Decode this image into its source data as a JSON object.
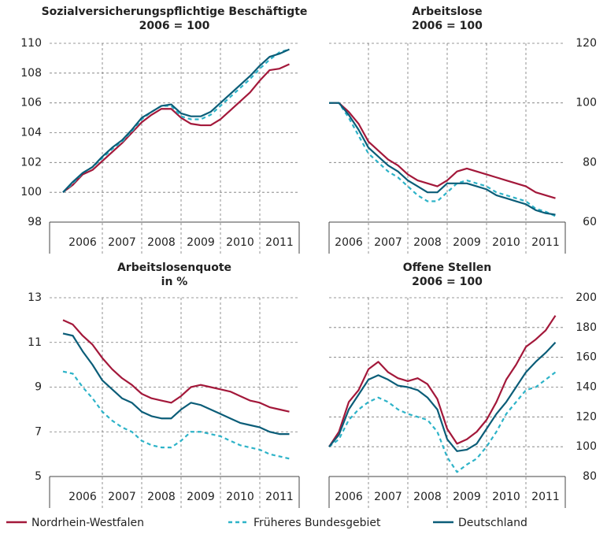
{
  "chart_data": [
    {
      "type": "line",
      "title": "Sozialversicherungspflichtige Beschäftigte",
      "subtitle": "2006 = 100",
      "x": [
        2006,
        2006.25,
        2006.5,
        2006.75,
        2007,
        2007.25,
        2007.5,
        2007.75,
        2008,
        2008.25,
        2008.5,
        2008.75,
        2009,
        2009.25,
        2009.5,
        2009.75,
        2010,
        2010.25,
        2010.5,
        2010.75,
        2011,
        2011.25,
        2011.5,
        2011.75
      ],
      "xlim": [
        2005.66,
        2012
      ],
      "xticks": [
        {
          "value": 2006.5,
          "label": "2006"
        },
        {
          "value": 2007.5,
          "label": "2007"
        },
        {
          "value": 2008.5,
          "label": "2008"
        },
        {
          "value": 2009.5,
          "label": "2009"
        },
        {
          "value": 2010.5,
          "label": "2010"
        },
        {
          "value": 2011.5,
          "label": "2011"
        }
      ],
      "xgrid": [
        2007,
        2008,
        2009,
        2010,
        2011
      ],
      "ylim": [
        98,
        110
      ],
      "yticks": [
        98,
        100,
        102,
        104,
        106,
        108,
        110
      ],
      "yaxis": "left",
      "grid": true,
      "series": [
        {
          "name": "Nordrhein-Westfalen",
          "color": "#a3183a",
          "dash": false,
          "values": [
            100,
            100.5,
            101.2,
            101.5,
            102.1,
            102.7,
            103.3,
            104,
            104.7,
            105.2,
            105.6,
            105.6,
            105,
            104.6,
            104.5,
            104.5,
            104.9,
            105.5,
            106.1,
            106.7,
            107.5,
            108.2,
            108.3,
            108.6
          ]
        },
        {
          "name": "Früheres Bundesgebiet",
          "color": "#2db3c8",
          "dash": true,
          "values": [
            100,
            100.6,
            101.3,
            101.7,
            102.3,
            102.9,
            103.4,
            104.1,
            104.9,
            105.4,
            105.8,
            105.8,
            105.1,
            104.9,
            104.9,
            105.2,
            105.8,
            106.4,
            107,
            107.6,
            108.3,
            108.9,
            109.4,
            109.6
          ]
        },
        {
          "name": "Deutschland",
          "color": "#0b5d78",
          "dash": false,
          "values": [
            100,
            100.7,
            101.3,
            101.7,
            102.4,
            103,
            103.5,
            104.2,
            105,
            105.4,
            105.8,
            105.9,
            105.3,
            105.1,
            105.1,
            105.4,
            106,
            106.6,
            107.2,
            107.8,
            108.5,
            109.1,
            109.3,
            109.6
          ]
        }
      ]
    },
    {
      "type": "line",
      "title": "Arbeitslose",
      "subtitle": "2006 = 100",
      "x": [
        2006,
        2006.25,
        2006.5,
        2006.75,
        2007,
        2007.25,
        2007.5,
        2007.75,
        2008,
        2008.25,
        2008.5,
        2008.75,
        2009,
        2009.25,
        2009.5,
        2009.75,
        2010,
        2010.25,
        2010.5,
        2010.75,
        2011,
        2011.25,
        2011.5,
        2011.75
      ],
      "xlim": [
        2006,
        2012
      ],
      "xticks": [
        {
          "value": 2006.5,
          "label": "2006"
        },
        {
          "value": 2007.5,
          "label": "2007"
        },
        {
          "value": 2008.5,
          "label": "2008"
        },
        {
          "value": 2009.5,
          "label": "2009"
        },
        {
          "value": 2010.5,
          "label": "2010"
        },
        {
          "value": 2011.5,
          "label": "2011"
        }
      ],
      "xgrid": [
        2007,
        2008,
        2009,
        2010,
        2011
      ],
      "ylim": [
        60,
        120
      ],
      "yticks": [
        60,
        80,
        100,
        120
      ],
      "yaxis": "right",
      "grid": true,
      "series": [
        {
          "name": "Nordrhein-Westfalen",
          "color": "#a3183a",
          "dash": false,
          "values": [
            100,
            100,
            97,
            93,
            87,
            84,
            81,
            79,
            76,
            74,
            73,
            72,
            74,
            77,
            78,
            77,
            76,
            75,
            74,
            73,
            72,
            70,
            69,
            68
          ]
        },
        {
          "name": "Früheres Bundesgebiet",
          "color": "#2db3c8",
          "dash": true,
          "values": [
            100,
            100,
            95,
            89,
            83,
            80,
            77,
            75,
            72,
            69,
            67,
            67,
            70,
            73,
            74,
            73,
            72,
            70,
            69,
            68,
            67,
            64.5,
            63.5,
            62
          ]
        },
        {
          "name": "Deutschland",
          "color": "#0b5d78",
          "dash": false,
          "values": [
            100,
            100,
            96,
            91,
            85,
            82,
            79,
            77,
            74,
            72,
            70,
            70,
            73,
            73,
            73,
            72,
            71,
            69,
            68,
            67,
            66,
            64,
            63,
            62.5
          ]
        }
      ]
    },
    {
      "type": "line",
      "title": "Arbeitslosenquote",
      "subtitle": "in %",
      "x": [
        2006,
        2006.25,
        2006.5,
        2006.75,
        2007,
        2007.25,
        2007.5,
        2007.75,
        2008,
        2008.25,
        2008.5,
        2008.75,
        2009,
        2009.25,
        2009.5,
        2009.75,
        2010,
        2010.25,
        2010.5,
        2010.75,
        2011,
        2011.25,
        2011.5,
        2011.75
      ],
      "xlim": [
        2005.66,
        2012
      ],
      "xticks": [
        {
          "value": 2006.5,
          "label": "2006"
        },
        {
          "value": 2007.5,
          "label": "2007"
        },
        {
          "value": 2008.5,
          "label": "2008"
        },
        {
          "value": 2009.5,
          "label": "2009"
        },
        {
          "value": 2010.5,
          "label": "2010"
        },
        {
          "value": 2011.5,
          "label": "2011"
        }
      ],
      "xgrid": [
        2007,
        2008,
        2009,
        2010,
        2011
      ],
      "ylim": [
        5,
        13
      ],
      "yticks": [
        5,
        7,
        9,
        11,
        13
      ],
      "yaxis": "left",
      "grid": true,
      "series": [
        {
          "name": "Nordrhein-Westfalen",
          "color": "#a3183a",
          "dash": false,
          "values": [
            12,
            11.8,
            11.3,
            10.9,
            10.3,
            9.8,
            9.4,
            9.1,
            8.7,
            8.5,
            8.4,
            8.3,
            8.6,
            9,
            9.1,
            9,
            8.9,
            8.8,
            8.6,
            8.4,
            8.3,
            8.1,
            8,
            7.9
          ]
        },
        {
          "name": "Früheres Bundesgebiet",
          "color": "#2db3c8",
          "dash": true,
          "values": [
            9.7,
            9.6,
            9,
            8.5,
            7.9,
            7.5,
            7.2,
            7,
            6.6,
            6.4,
            6.3,
            6.3,
            6.6,
            7,
            7,
            6.9,
            6.8,
            6.6,
            6.4,
            6.3,
            6.2,
            6,
            5.9,
            5.8
          ]
        },
        {
          "name": "Deutschland",
          "color": "#0b5d78",
          "dash": false,
          "values": [
            11.4,
            11.3,
            10.6,
            10,
            9.3,
            8.9,
            8.5,
            8.3,
            7.9,
            7.7,
            7.6,
            7.6,
            8,
            8.3,
            8.2,
            8,
            7.8,
            7.6,
            7.4,
            7.3,
            7.2,
            7,
            6.9,
            6.9
          ]
        }
      ]
    },
    {
      "type": "line",
      "title": "Offene Stellen",
      "subtitle": "2006 = 100",
      "x": [
        2006,
        2006.25,
        2006.5,
        2006.75,
        2007,
        2007.25,
        2007.5,
        2007.75,
        2008,
        2008.25,
        2008.5,
        2008.75,
        2009,
        2009.25,
        2009.5,
        2009.75,
        2010,
        2010.25,
        2010.5,
        2010.75,
        2011,
        2011.25,
        2011.5,
        2011.75
      ],
      "xlim": [
        2006,
        2012
      ],
      "xticks": [
        {
          "value": 2006.5,
          "label": "2006"
        },
        {
          "value": 2007.5,
          "label": "2007"
        },
        {
          "value": 2008.5,
          "label": "2008"
        },
        {
          "value": 2009.5,
          "label": "2009"
        },
        {
          "value": 2010.5,
          "label": "2010"
        },
        {
          "value": 2011.5,
          "label": "2011"
        }
      ],
      "xgrid": [
        2007,
        2008,
        2009,
        2010,
        2011
      ],
      "ylim": [
        80,
        200
      ],
      "yticks": [
        80,
        100,
        120,
        140,
        160,
        180,
        200
      ],
      "yaxis": "right",
      "grid": true,
      "series": [
        {
          "name": "Nordrhein-Westfalen",
          "color": "#a3183a",
          "dash": false,
          "values": [
            100,
            110,
            130,
            138,
            152,
            157,
            150,
            146,
            144,
            146,
            142,
            132,
            112,
            102,
            105,
            110,
            118,
            130,
            145,
            155,
            167,
            172,
            178,
            188
          ]
        },
        {
          "name": "Früheres Bundesgebiet",
          "color": "#2db3c8",
          "dash": true,
          "values": [
            100,
            105,
            118,
            125,
            130,
            133,
            130,
            125,
            122,
            120,
            118,
            110,
            93,
            83,
            88,
            92,
            100,
            110,
            122,
            130,
            138,
            140,
            145,
            150
          ]
        },
        {
          "name": "Deutschland",
          "color": "#0b5d78",
          "dash": false,
          "values": [
            100,
            108,
            125,
            135,
            145,
            148,
            145,
            141,
            140,
            138,
            133,
            125,
            105,
            97,
            98,
            102,
            112,
            122,
            130,
            140,
            150,
            157,
            163,
            170
          ]
        }
      ]
    }
  ]
}
